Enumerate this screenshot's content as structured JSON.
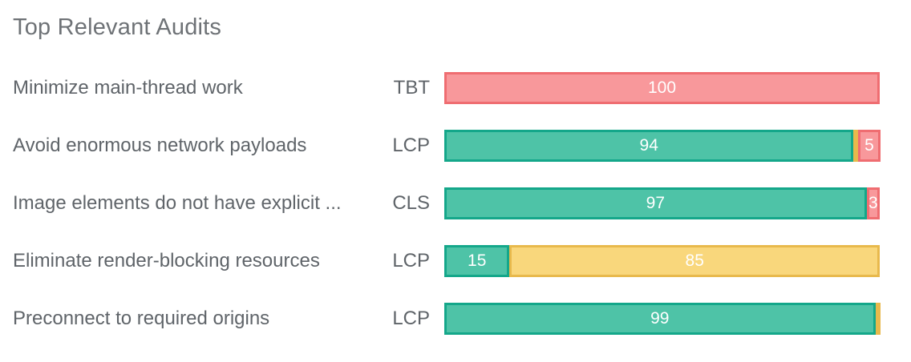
{
  "title": "Top Relevant Audits",
  "colors": {
    "pass": {
      "fill": "#4ec3a7",
      "border": "#14a78a"
    },
    "average": {
      "fill": "#f9d77c",
      "border": "#e8b94c"
    },
    "fail": {
      "fill": "#f8989b",
      "border": "#ef6d71"
    },
    "value_text": "#ffffff",
    "label_text": "#5f6469",
    "title_text": "#6e7276"
  },
  "rows": [
    {
      "audit": "Minimize main-thread work",
      "metric": "TBT",
      "segments": [
        {
          "type": "fail",
          "value": 100,
          "label": "100"
        }
      ]
    },
    {
      "audit": "Avoid enormous network payloads",
      "metric": "LCP",
      "segments": [
        {
          "type": "pass",
          "value": 94,
          "label": "94"
        },
        {
          "type": "average",
          "value": 1,
          "label": ""
        },
        {
          "type": "fail",
          "value": 5,
          "label": "5"
        }
      ]
    },
    {
      "audit": "Image elements do not have explicit ...",
      "metric": "CLS",
      "segments": [
        {
          "type": "pass",
          "value": 97,
          "label": "97"
        },
        {
          "type": "fail",
          "value": 3,
          "label": "3"
        }
      ]
    },
    {
      "audit": "Eliminate render-blocking resources",
      "metric": "LCP",
      "segments": [
        {
          "type": "pass",
          "value": 15,
          "label": "15"
        },
        {
          "type": "average",
          "value": 85,
          "label": "85"
        }
      ]
    },
    {
      "audit": "Preconnect to required origins",
      "metric": "LCP",
      "segments": [
        {
          "type": "pass",
          "value": 99,
          "label": "99"
        },
        {
          "type": "average",
          "value": 1,
          "label": ""
        }
      ]
    }
  ],
  "chart_data": {
    "type": "bar",
    "orientation": "horizontal",
    "stacked": true,
    "title": "Top Relevant Audits",
    "categories": [
      "Minimize main-thread work",
      "Avoid enormous network payloads",
      "Image elements do not have explicit ...",
      "Eliminate render-blocking resources",
      "Preconnect to required origins"
    ],
    "metric_tags": [
      "TBT",
      "LCP",
      "CLS",
      "LCP",
      "LCP"
    ],
    "series": [
      {
        "name": "pass",
        "color": "#4ec3a7",
        "values": [
          0,
          94,
          97,
          15,
          99
        ]
      },
      {
        "name": "average",
        "color": "#f9d77c",
        "values": [
          0,
          1,
          0,
          85,
          1
        ]
      },
      {
        "name": "fail",
        "color": "#f8989b",
        "values": [
          100,
          5,
          3,
          0,
          0
        ]
      }
    ],
    "xlim": [
      0,
      100
    ],
    "grid": false,
    "legend": false,
    "data_labels": "inside-center, white, slivers of 1 unlabeled"
  }
}
